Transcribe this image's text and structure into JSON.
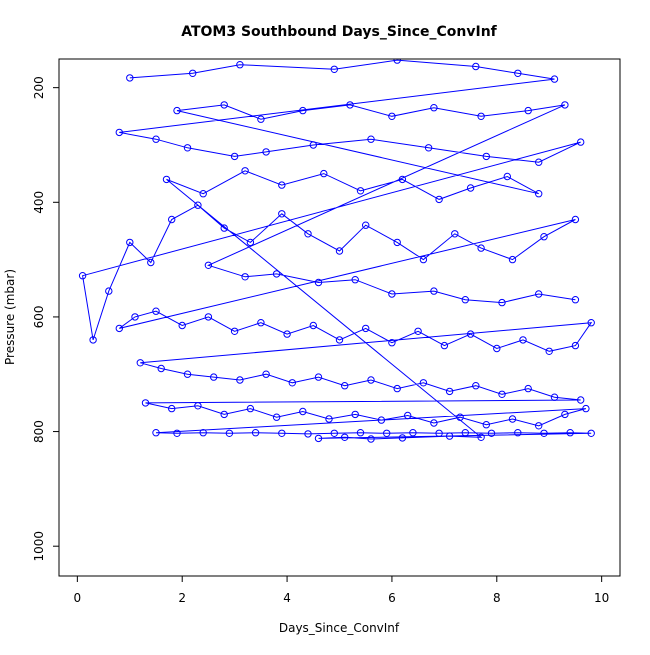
{
  "chart_data": {
    "type": "scatter",
    "title": "ATOM3 Southbound Days_Since_ConvInf",
    "xlabel": "Days_Since_ConvInf",
    "ylabel": "Pressure (mbar)",
    "xlim": [
      -0.35,
      10.35
    ],
    "ylim": [
      1052,
      150
    ],
    "y_reversed": true,
    "x_ticks": [
      "0",
      "2",
      "4",
      "6",
      "8",
      "10"
    ],
    "y_ticks": [
      "200",
      "400",
      "600",
      "800",
      "1000"
    ],
    "grid": false,
    "legend": "none",
    "color": "#0000ff",
    "series": [
      {
        "marker": "open-circle",
        "connected": true,
        "points": [
          [
            1.0,
            183
          ],
          [
            2.2,
            175
          ],
          [
            3.1,
            160
          ],
          [
            4.9,
            168
          ],
          [
            6.1,
            152
          ],
          [
            7.6,
            163
          ],
          [
            8.4,
            175
          ],
          [
            9.1,
            185
          ],
          [
            0.8,
            278
          ],
          [
            1.5,
            290
          ],
          [
            2.1,
            305
          ],
          [
            3.0,
            320
          ],
          [
            3.6,
            312
          ],
          [
            4.5,
            300
          ],
          [
            5.6,
            290
          ],
          [
            6.7,
            305
          ],
          [
            7.8,
            320
          ],
          [
            8.8,
            330
          ],
          [
            9.6,
            295
          ],
          [
            0.1,
            528
          ],
          [
            0.3,
            640
          ],
          [
            0.6,
            555
          ],
          [
            1.0,
            470
          ],
          [
            1.4,
            505
          ],
          [
            1.8,
            430
          ],
          [
            2.3,
            405
          ],
          [
            2.8,
            445
          ],
          [
            3.3,
            470
          ],
          [
            3.9,
            420
          ],
          [
            4.4,
            455
          ],
          [
            5.0,
            485
          ],
          [
            5.5,
            440
          ],
          [
            6.1,
            470
          ],
          [
            6.6,
            500
          ],
          [
            7.2,
            455
          ],
          [
            7.7,
            480
          ],
          [
            8.3,
            500
          ],
          [
            8.9,
            460
          ],
          [
            9.5,
            430
          ],
          [
            0.8,
            620
          ],
          [
            1.1,
            600
          ],
          [
            1.5,
            590
          ],
          [
            2.0,
            615
          ],
          [
            2.5,
            600
          ],
          [
            3.0,
            625
          ],
          [
            3.5,
            610
          ],
          [
            4.0,
            630
          ],
          [
            4.5,
            615
          ],
          [
            5.0,
            640
          ],
          [
            5.5,
            620
          ],
          [
            6.0,
            645
          ],
          [
            6.5,
            625
          ],
          [
            7.0,
            650
          ],
          [
            7.5,
            630
          ],
          [
            8.0,
            655
          ],
          [
            8.5,
            640
          ],
          [
            9.0,
            660
          ],
          [
            9.5,
            650
          ],
          [
            9.8,
            610
          ],
          [
            1.2,
            680
          ],
          [
            1.6,
            690
          ],
          [
            2.1,
            700
          ],
          [
            2.6,
            705
          ],
          [
            3.1,
            710
          ],
          [
            3.6,
            700
          ],
          [
            4.1,
            715
          ],
          [
            4.6,
            705
          ],
          [
            5.1,
            720
          ],
          [
            5.6,
            710
          ],
          [
            6.1,
            725
          ],
          [
            6.6,
            715
          ],
          [
            7.1,
            730
          ],
          [
            7.6,
            720
          ],
          [
            8.1,
            735
          ],
          [
            8.6,
            725
          ],
          [
            9.1,
            740
          ],
          [
            9.6,
            745
          ],
          [
            1.3,
            750
          ],
          [
            1.8,
            760
          ],
          [
            2.3,
            755
          ],
          [
            2.8,
            770
          ],
          [
            3.3,
            760
          ],
          [
            3.8,
            775
          ],
          [
            4.3,
            765
          ],
          [
            4.8,
            778
          ],
          [
            5.3,
            770
          ],
          [
            5.8,
            780
          ],
          [
            6.3,
            772
          ],
          [
            6.8,
            785
          ],
          [
            7.3,
            775
          ],
          [
            7.8,
            788
          ],
          [
            8.3,
            778
          ],
          [
            8.8,
            790
          ],
          [
            9.3,
            770
          ],
          [
            9.7,
            760
          ],
          [
            1.5,
            802
          ],
          [
            1.9,
            803
          ],
          [
            2.4,
            802
          ],
          [
            2.9,
            803
          ],
          [
            3.4,
            802
          ],
          [
            3.9,
            803
          ],
          [
            4.4,
            804
          ],
          [
            4.9,
            803
          ],
          [
            5.4,
            802
          ],
          [
            5.9,
            803
          ],
          [
            6.4,
            802
          ],
          [
            6.9,
            803
          ],
          [
            7.4,
            802
          ],
          [
            7.9,
            803
          ],
          [
            8.4,
            802
          ],
          [
            8.9,
            803
          ],
          [
            9.4,
            802
          ],
          [
            9.8,
            803
          ],
          [
            4.6,
            812
          ],
          [
            5.1,
            810
          ],
          [
            5.6,
            813
          ],
          [
            6.2,
            811
          ],
          [
            7.1,
            808
          ],
          [
            7.7,
            810
          ],
          [
            1.7,
            360
          ],
          [
            2.4,
            385
          ],
          [
            3.2,
            345
          ],
          [
            3.9,
            370
          ],
          [
            4.7,
            350
          ],
          [
            5.4,
            380
          ],
          [
            6.2,
            360
          ],
          [
            6.9,
            395
          ],
          [
            7.5,
            375
          ],
          [
            8.2,
            355
          ],
          [
            8.8,
            385
          ],
          [
            1.9,
            240
          ],
          [
            2.8,
            230
          ],
          [
            3.5,
            255
          ],
          [
            4.3,
            240
          ],
          [
            5.2,
            230
          ],
          [
            6.0,
            250
          ],
          [
            6.8,
            235
          ],
          [
            7.7,
            250
          ],
          [
            8.6,
            240
          ],
          [
            9.3,
            230
          ],
          [
            2.5,
            510
          ],
          [
            3.2,
            530
          ],
          [
            3.8,
            525
          ],
          [
            4.6,
            540
          ],
          [
            5.3,
            535
          ],
          [
            6.0,
            560
          ],
          [
            6.8,
            555
          ],
          [
            7.4,
            570
          ],
          [
            8.1,
            575
          ],
          [
            8.8,
            560
          ],
          [
            9.5,
            570
          ]
        ]
      }
    ]
  }
}
